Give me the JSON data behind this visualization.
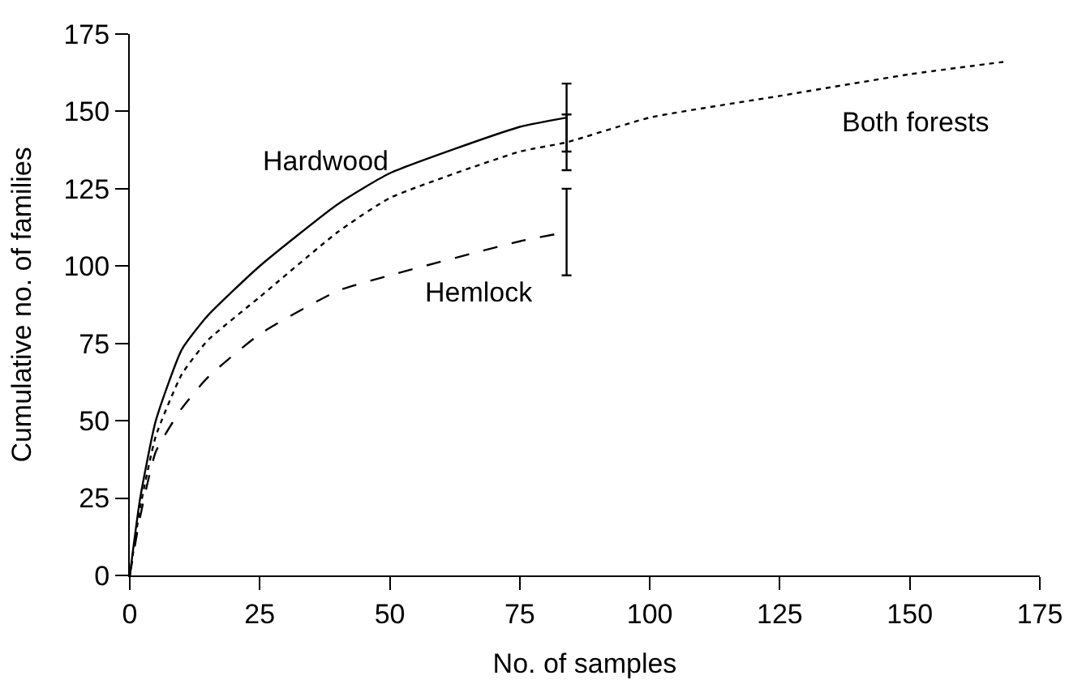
{
  "chart_data": {
    "type": "line",
    "xlabel": "No. of samples",
    "ylabel": "Cumulative no. of families",
    "xlim": [
      0,
      175
    ],
    "xticks": [
      0,
      25,
      50,
      75,
      100,
      125,
      150,
      175
    ],
    "ylim": [
      0,
      175
    ],
    "yticks": [
      0,
      25,
      50,
      75,
      100,
      125,
      150,
      175
    ],
    "legend": false,
    "marker": "none",
    "series": [
      {
        "name": "Hardwood",
        "color": "#000000",
        "line_style": "solid",
        "x": [
          0,
          2,
          5,
          10,
          15,
          25,
          40,
          50,
          75,
          84
        ],
        "values": [
          0,
          25,
          50,
          73,
          84,
          100,
          120,
          130,
          145,
          148
        ],
        "errors": [
          null,
          null,
          null,
          null,
          null,
          null,
          null,
          null,
          null,
          11
        ]
      },
      {
        "name": "Hemlock",
        "color": "#000000",
        "line_style": "dashed",
        "x": [
          0,
          2,
          5,
          10,
          15,
          25,
          40,
          50,
          75,
          84
        ],
        "values": [
          0,
          19,
          40,
          54,
          64,
          78,
          92,
          97,
          108,
          111
        ],
        "errors": [
          null,
          null,
          null,
          null,
          null,
          null,
          null,
          null,
          null,
          14
        ]
      },
      {
        "name": "Both forests",
        "color": "#000000",
        "line_style": "dotted",
        "x": [
          0,
          2,
          5,
          10,
          15,
          25,
          40,
          50,
          75,
          84,
          100,
          125,
          150,
          168
        ],
        "values": [
          0,
          22,
          45,
          65,
          76,
          90,
          111,
          122,
          137,
          140,
          148,
          155,
          162,
          166
        ],
        "errors": [
          null,
          null,
          null,
          null,
          null,
          null,
          null,
          null,
          null,
          9,
          null,
          null,
          null,
          null
        ]
      }
    ]
  }
}
